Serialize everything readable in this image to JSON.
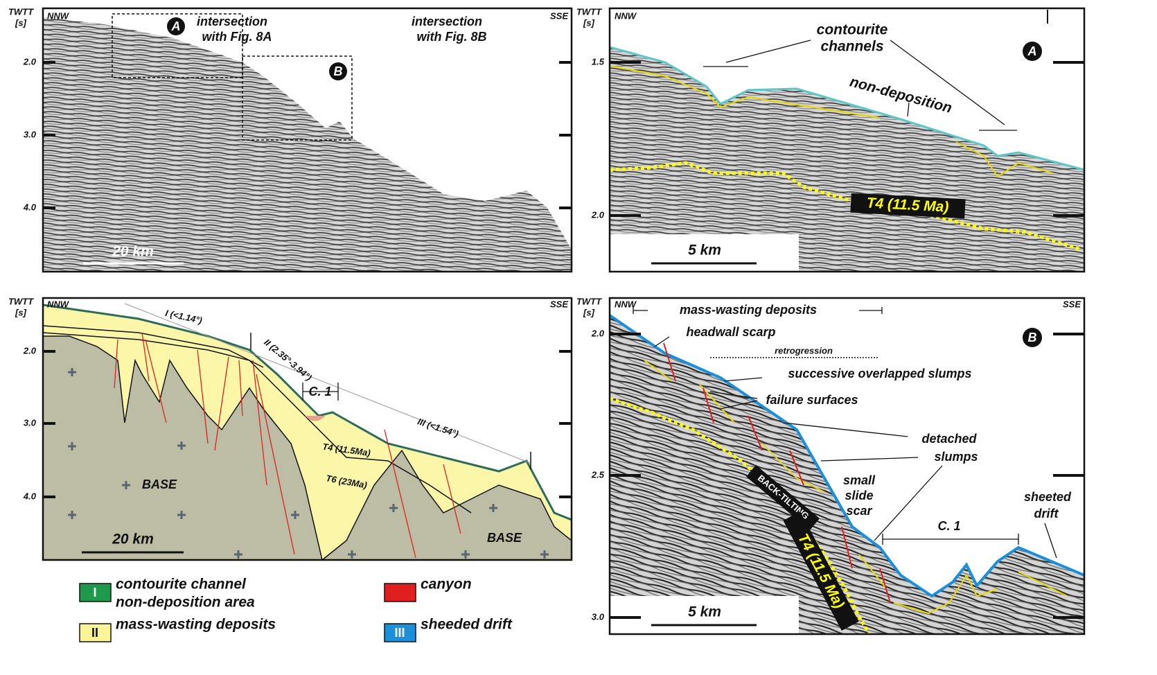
{
  "top_left": {
    "axis_title": [
      "TWTT",
      "[s]"
    ],
    "direction_left": "NNW",
    "direction_right": "SSE",
    "yticks": [
      "2.0",
      "3.0",
      "4.0"
    ],
    "box_labels": [
      "A",
      "B"
    ],
    "annotations": [
      "intersection",
      "with Fig. 8A",
      "intersection",
      "with Fig. 8B"
    ],
    "scale": "20 km"
  },
  "top_right": {
    "axis_title": [
      "TWTT",
      "[s]"
    ],
    "direction_left": "NNW",
    "panel_label": "A",
    "yticks": [
      "1.5",
      "2.0"
    ],
    "annotations": [
      "contourite",
      "channels",
      "non-deposition",
      "T4 (11.5 Ma)"
    ],
    "scale": "5 km"
  },
  "bottom_left": {
    "axis_title": [
      "TWTT",
      "[s]"
    ],
    "direction_left": "NNW",
    "direction_right": "SSE",
    "yticks": [
      "2.0",
      "3.0",
      "4.0"
    ],
    "annotations": [
      "I (<1.14°)",
      "II (2.35°-3.94°)",
      "III (<1.54°)",
      "C. 1",
      "T4 (11.5Ma)",
      "T6 (23Ma)",
      "BASE",
      "BASE"
    ],
    "scale": "20 km"
  },
  "bottom_right": {
    "axis_title": [
      "TWTT",
      "[s]"
    ],
    "direction_left": "NNW",
    "direction_right": "SSE",
    "panel_label": "B",
    "yticks": [
      "2.0",
      "2.5",
      "3.0"
    ],
    "annotations": [
      "mass-wasting deposits",
      "headwall scarp",
      "retrogression",
      "successive overlapped slumps",
      "failure surfaces",
      "detached",
      "slumps",
      "small",
      "slide",
      "scar",
      "sheeted",
      "drift",
      "BACK-TILTING",
      "C. 1",
      "T4 (11.5 Ma)"
    ],
    "scale": "5 km"
  },
  "legend": [
    {
      "code": "I",
      "text": [
        "contourite channel",
        "non-deposition area"
      ],
      "color": "#1f9a4c"
    },
    {
      "code": "II",
      "text": [
        "mass-wasting deposits"
      ],
      "color": "#fbf59a"
    },
    {
      "code": "canyon",
      "text": [
        "canyon"
      ],
      "color": "#e02020"
    },
    {
      "code": "III",
      "text": [
        "sheeded drift"
      ],
      "color": "#1b8fd8"
    }
  ]
}
